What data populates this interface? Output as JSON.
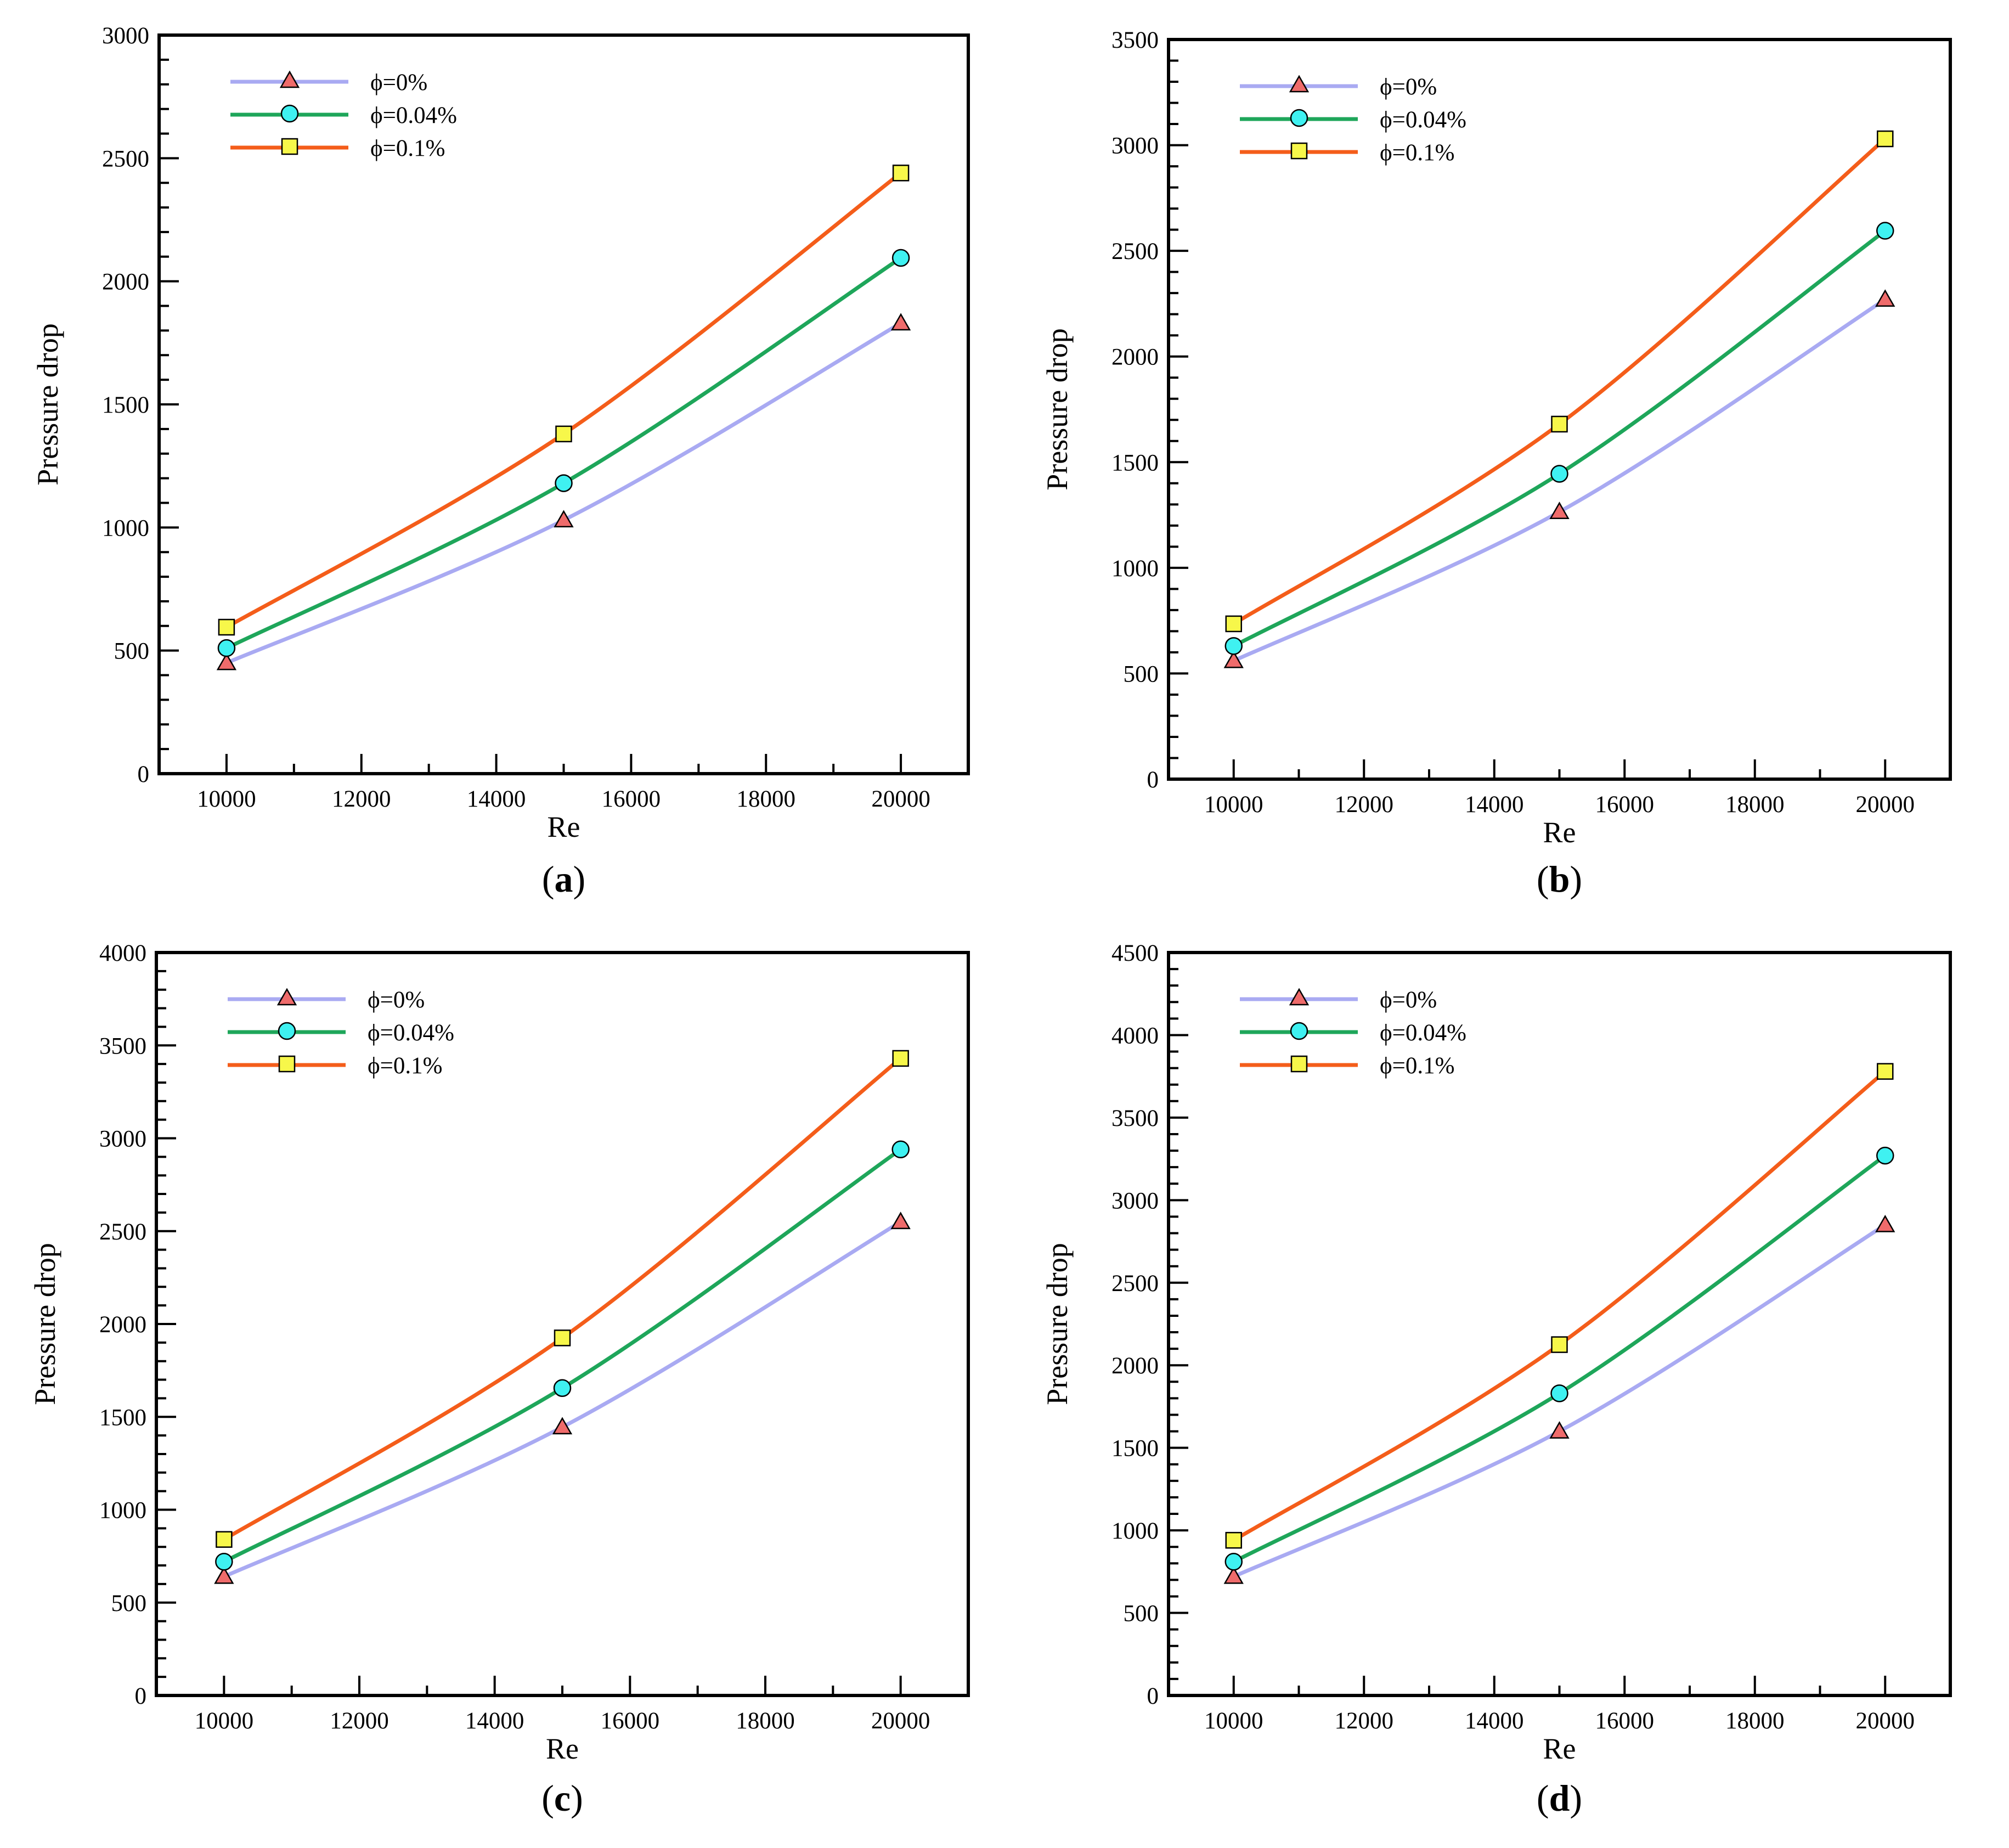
{
  "figure": {
    "series_meta": [
      {
        "name": "ϕ=0%",
        "color": "#a9aaf2",
        "marker": "triangle",
        "marker_fill": "#ef6b6b"
      },
      {
        "name": "ϕ=0.04%",
        "color": "#1ea65a",
        "marker": "circle",
        "marker_fill": "#3ff1f1"
      },
      {
        "name": "ϕ=0.1%",
        "color": "#f45d1a",
        "marker": "square",
        "marker_fill": "#f7f74a"
      }
    ]
  },
  "chart_data": [
    {
      "type": "line",
      "panel": "a",
      "label": "(a)",
      "xlabel": "Re",
      "ylabel": "Pressure drop",
      "xlim": [
        9000,
        21000
      ],
      "ylim": [
        0,
        3000
      ],
      "xticks": [
        10000,
        12000,
        14000,
        16000,
        18000,
        20000
      ],
      "yticks": [
        0,
        500,
        1000,
        1500,
        2000,
        2500,
        3000
      ],
      "legend_position": "top-left",
      "grid": false,
      "x": [
        10000,
        15000,
        20000
      ],
      "series": [
        {
          "name": "ϕ=0%",
          "values": [
            450,
            1030,
            1830
          ]
        },
        {
          "name": "ϕ=0.04%",
          "values": [
            510,
            1180,
            2095
          ]
        },
        {
          "name": "ϕ=0.1%",
          "values": [
            595,
            1380,
            2440
          ]
        }
      ]
    },
    {
      "type": "line",
      "panel": "b",
      "label": "(b)",
      "xlabel": "Re",
      "ylabel": "Pressure drop",
      "xlim": [
        9000,
        21000
      ],
      "ylim": [
        0,
        3500
      ],
      "xticks": [
        10000,
        12000,
        14000,
        16000,
        18000,
        20000
      ],
      "yticks": [
        0,
        500,
        1000,
        1500,
        2000,
        2500,
        3000,
        3500
      ],
      "legend_position": "top-left",
      "grid": false,
      "x": [
        10000,
        15000,
        20000
      ],
      "series": [
        {
          "name": "ϕ=0%",
          "values": [
            560,
            1265,
            2270
          ]
        },
        {
          "name": "ϕ=0.04%",
          "values": [
            630,
            1445,
            2595
          ]
        },
        {
          "name": "ϕ=0.1%",
          "values": [
            735,
            1680,
            3030
          ]
        }
      ]
    },
    {
      "type": "line",
      "panel": "c",
      "label": "(c)",
      "xlabel": "Re",
      "ylabel": "Pressure drop",
      "xlim": [
        9000,
        21000
      ],
      "ylim": [
        0,
        4000
      ],
      "xticks": [
        10000,
        12000,
        14000,
        16000,
        18000,
        20000
      ],
      "yticks": [
        0,
        500,
        1000,
        1500,
        2000,
        2500,
        3000,
        3500,
        4000
      ],
      "legend_position": "top-left",
      "grid": false,
      "x": [
        10000,
        15000,
        20000
      ],
      "series": [
        {
          "name": "ϕ=0%",
          "values": [
            640,
            1445,
            2550
          ]
        },
        {
          "name": "ϕ=0.04%",
          "values": [
            720,
            1655,
            2940
          ]
        },
        {
          "name": "ϕ=0.1%",
          "values": [
            840,
            1925,
            3430
          ]
        }
      ]
    },
    {
      "type": "line",
      "panel": "d",
      "label": "(d)",
      "xlabel": "Re",
      "ylabel": "Pressure drop",
      "xlim": [
        9000,
        21000
      ],
      "ylim": [
        0,
        4500
      ],
      "xticks": [
        10000,
        12000,
        14000,
        16000,
        18000,
        20000
      ],
      "yticks": [
        0,
        500,
        1000,
        1500,
        2000,
        2500,
        3000,
        3500,
        4000,
        4500
      ],
      "legend_position": "top-left",
      "grid": false,
      "x": [
        10000,
        15000,
        20000
      ],
      "series": [
        {
          "name": "ϕ=0%",
          "values": [
            720,
            1600,
            2850
          ]
        },
        {
          "name": "ϕ=0.04%",
          "values": [
            810,
            1830,
            3270
          ]
        },
        {
          "name": "ϕ=0.1%",
          "values": [
            940,
            2125,
            3780
          ]
        }
      ]
    }
  ]
}
